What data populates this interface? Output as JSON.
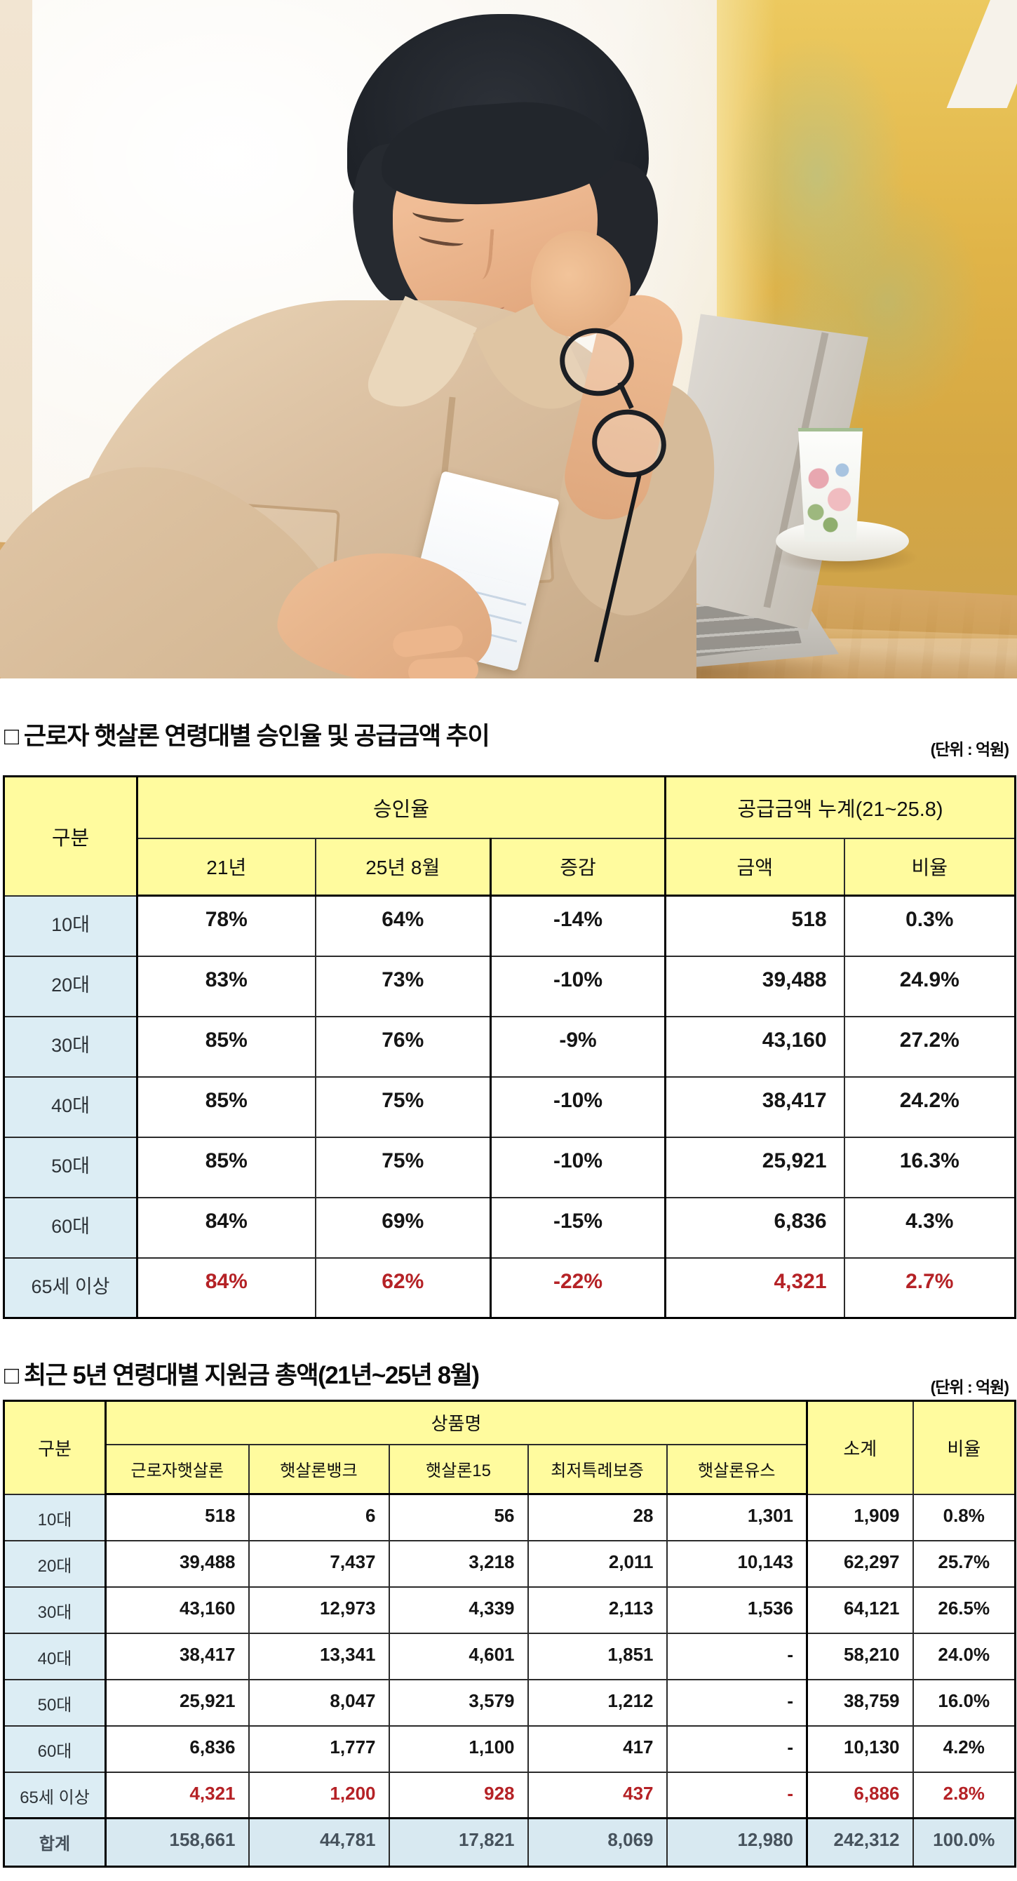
{
  "theme": {
    "header_yellow": "#FFFB9E",
    "label_blue": "#DCEDF4",
    "total_blue": "#D8E9F1",
    "highlight_red": "#B52226",
    "border_dark": "#2b2b2b",
    "border_heavy": "#000000",
    "title_black": "#0c0c0c",
    "text_black": "#151515",
    "gray_text": "#46525c",
    "wall_yellow": "#DFB54C",
    "wood_brown": "#C08B47",
    "shirt_beige": "#DCC2A4",
    "skin": "#ECB48C",
    "hair_dark": "#23262C",
    "laptop_silver": "#CCC8C1"
  },
  "section1": {
    "title": "□ 근로자 햇살론 연령대별 승인율 및 공급금액 추이",
    "unit": "(단위 : 억원)",
    "table": {
      "header": {
        "gubun": "구분",
        "approval": "승인율",
        "supply": "공급금액 누계(21~25.8)"
      },
      "sub": [
        "21년",
        "25년 8월",
        "증감",
        "금액",
        "비율"
      ],
      "rows": [
        {
          "label": "10대",
          "type": "normal",
          "cells": [
            "78%",
            "64%",
            "-14%",
            "518",
            "0.3%"
          ]
        },
        {
          "label": "20대",
          "type": "normal",
          "cells": [
            "83%",
            "73%",
            "-10%",
            "39,488",
            "24.9%"
          ]
        },
        {
          "label": "30대",
          "type": "normal",
          "cells": [
            "85%",
            "76%",
            "-9%",
            "43,160",
            "27.2%"
          ]
        },
        {
          "label": "40대",
          "type": "normal",
          "cells": [
            "85%",
            "75%",
            "-10%",
            "38,417",
            "24.2%"
          ]
        },
        {
          "label": "50대",
          "type": "normal",
          "cells": [
            "85%",
            "75%",
            "-10%",
            "25,921",
            "16.3%"
          ]
        },
        {
          "label": "60대",
          "type": "normal",
          "cells": [
            "84%",
            "69%",
            "-15%",
            "6,836",
            "4.3%"
          ]
        },
        {
          "label": "65세 이상",
          "type": "highlight",
          "cells": [
            "84%",
            "62%",
            "-22%",
            "4,321",
            "2.7%"
          ]
        }
      ]
    }
  },
  "section2": {
    "title": "□ 최근 5년 연령대별 지원금 총액(21년~25년 8월)",
    "unit": "(단위 : 억원)",
    "table": {
      "header": {
        "gubun": "구분",
        "product_group": "상품명",
        "subtotal": "소계",
        "ratio": "비율"
      },
      "products": [
        "근로자햇살론",
        "햇살론뱅크",
        "햇살론15",
        "최저특례보증",
        "햇살론유스"
      ],
      "rows": [
        {
          "label": "10대",
          "type": "normal",
          "cells": [
            "518",
            "6",
            "56",
            "28",
            "1,301",
            "1,909",
            "0.8%"
          ]
        },
        {
          "label": "20대",
          "type": "normal",
          "cells": [
            "39,488",
            "7,437",
            "3,218",
            "2,011",
            "10,143",
            "62,297",
            "25.7%"
          ]
        },
        {
          "label": "30대",
          "type": "normal",
          "cells": [
            "43,160",
            "12,973",
            "4,339",
            "2,113",
            "1,536",
            "64,121",
            "26.5%"
          ]
        },
        {
          "label": "40대",
          "type": "normal",
          "cells": [
            "38,417",
            "13,341",
            "4,601",
            "1,851",
            "-",
            "58,210",
            "24.0%"
          ]
        },
        {
          "label": "50대",
          "type": "normal",
          "cells": [
            "25,921",
            "8,047",
            "3,579",
            "1,212",
            "-",
            "38,759",
            "16.0%"
          ]
        },
        {
          "label": "60대",
          "type": "normal",
          "cells": [
            "6,836",
            "1,777",
            "1,100",
            "417",
            "-",
            "10,130",
            "4.2%"
          ]
        },
        {
          "label": "65세 이상",
          "type": "highlight",
          "cells": [
            "4,321",
            "1,200",
            "928",
            "437",
            "-",
            "6,886",
            "2.8%"
          ]
        },
        {
          "label": "합계",
          "type": "total",
          "cells": [
            "158,661",
            "44,781",
            "17,821",
            "8,069",
            "12,980",
            "242,312",
            "100.0%"
          ]
        }
      ]
    }
  }
}
